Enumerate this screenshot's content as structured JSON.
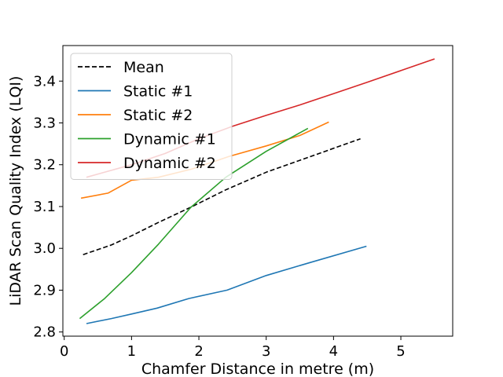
{
  "chart_data": {
    "type": "line",
    "xlabel": "Chamfer Distance in metre (m)",
    "ylabel": "LiDAR Scan Quality Index (LQI)",
    "xlim": [
      -0.02,
      5.77
    ],
    "ylim": [
      2.79,
      3.485
    ],
    "xticks": [
      0,
      1,
      2,
      3,
      4,
      5
    ],
    "yticks": [
      2.8,
      2.9,
      3.0,
      3.1,
      3.2,
      3.3,
      3.4
    ],
    "xtick_labels": [
      "0",
      "1",
      "2",
      "3",
      "4",
      "5"
    ],
    "ytick_labels": [
      "2.8",
      "2.9",
      "3.0",
      "3.1",
      "3.2",
      "3.3",
      "3.4"
    ],
    "grid": false,
    "legend_position": "upper-left",
    "series": [
      {
        "name": "Mean",
        "color": "#000000",
        "dashed": true,
        "x": [
          0.28,
          0.7,
          1.0,
          1.4,
          1.9,
          2.4,
          3.0,
          3.7,
          4.4
        ],
        "y": [
          2.985,
          3.008,
          3.03,
          3.062,
          3.1,
          3.14,
          3.182,
          3.222,
          3.262
        ]
      },
      {
        "name": "Static #1",
        "color": "#1f77b4",
        "dashed": false,
        "x": [
          0.33,
          0.7,
          1.0,
          1.38,
          1.85,
          2.42,
          3.0,
          3.65,
          4.49
        ],
        "y": [
          2.82,
          2.832,
          2.843,
          2.857,
          2.88,
          2.9,
          2.935,
          2.966,
          3.005
        ]
      },
      {
        "name": "Static #2",
        "color": "#ff7f0e",
        "dashed": false,
        "x": [
          0.25,
          0.65,
          1.0,
          1.4,
          1.9,
          2.45,
          3.0,
          3.5,
          3.93
        ],
        "y": [
          3.12,
          3.132,
          3.163,
          3.17,
          3.19,
          3.22,
          3.245,
          3.27,
          3.302
        ]
      },
      {
        "name": "Dynamic #1",
        "color": "#2ca02c",
        "dashed": false,
        "x": [
          0.23,
          0.6,
          1.0,
          1.4,
          1.88,
          2.4,
          3.0,
          3.62
        ],
        "y": [
          2.832,
          2.88,
          2.942,
          3.01,
          3.098,
          3.17,
          3.232,
          3.287
        ]
      },
      {
        "name": "Dynamic #2",
        "color": "#d62728",
        "dashed": false,
        "x": [
          0.33,
          1.0,
          1.5,
          2.0,
          2.5,
          3.0,
          3.5,
          4.0,
          4.5,
          5.0,
          5.5
        ],
        "y": [
          3.17,
          3.2,
          3.227,
          3.262,
          3.292,
          3.318,
          3.343,
          3.37,
          3.397,
          3.425,
          3.453
        ]
      }
    ]
  }
}
